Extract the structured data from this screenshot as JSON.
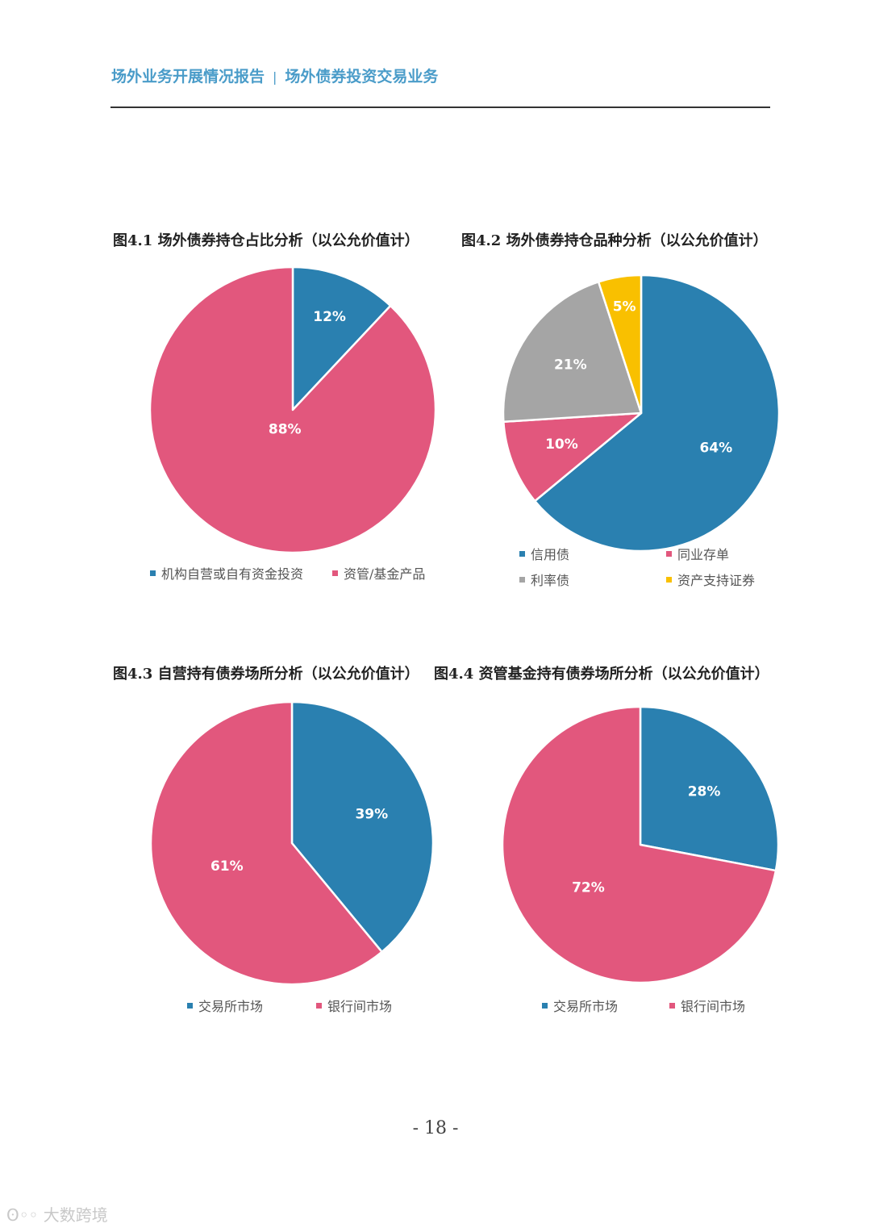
{
  "header": {
    "left": "场外业务开展情况报告",
    "separator": "|",
    "right": "场外债券投资交易业务"
  },
  "page_number": "- 18 -",
  "watermark": "大数跨境",
  "colors": {
    "blue": "#2a80b0",
    "pink": "#e2577d",
    "gray": "#a5a5a5",
    "yellow": "#f9c000"
  },
  "chart_data": [
    {
      "type": "pie",
      "title": "图4.1 场外债券持仓占比分析（以公允价值计）",
      "labels": [
        "机构自营或自有资金投资",
        "资管/基金产品"
      ],
      "values": [
        12,
        88
      ],
      "data_labels": [
        "12%",
        "88%"
      ],
      "legend": "bottom"
    },
    {
      "type": "pie",
      "title": "图4.2 场外债券持仓品种分析（以公允价值计）",
      "labels": [
        "信用债",
        "同业存单",
        "利率债",
        "资产支持证券"
      ],
      "values": [
        64,
        10,
        21,
        5
      ],
      "data_labels": [
        "64%",
        "10%",
        "21%",
        "5%"
      ],
      "legend": "bottom"
    },
    {
      "type": "pie",
      "title": "图4.3 自营持有债券场所分析（以公允价值计）",
      "labels": [
        "交易所市场",
        "银行间市场"
      ],
      "values": [
        39,
        61
      ],
      "data_labels": [
        "39%",
        "61%"
      ],
      "legend": "bottom"
    },
    {
      "type": "pie",
      "title": "图4.4 资管基金持有债券场所分析（以公允价值计）",
      "labels": [
        "交易所市场",
        "银行间市场"
      ],
      "values": [
        28,
        72
      ],
      "data_labels": [
        "28%",
        "72%"
      ],
      "legend": "bottom"
    }
  ]
}
